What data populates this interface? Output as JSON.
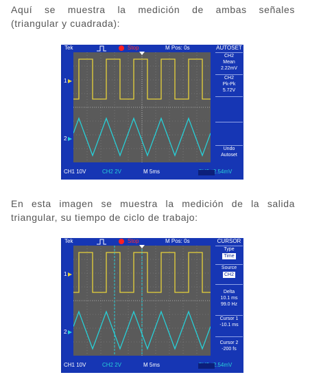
{
  "intro": {
    "line1": "Aquí se muestra la medición de ambas señales",
    "line2": "(triangular y cuadrada):"
  },
  "middle": {
    "line1": "En esta imagen se muestra la medición de la salida",
    "line2": "triangular, su tiempo de ciclo de trabajo:"
  },
  "colors": {
    "ch1": "#e8d23a",
    "ch2": "#27d0d8",
    "grid": "#5a5a5a",
    "frame": "#1636b4",
    "stop": "#ff2020"
  },
  "scope1": {
    "header": {
      "brand": "Tek",
      "trigger_icon": "trigger-edge-icon",
      "state": "Stop",
      "mpos": "M Pos: 0s"
    },
    "menu": {
      "title": "AUTOSET",
      "items": [
        {
          "lines": [
            "CH2",
            "Mean",
            "2.22mV"
          ]
        },
        {
          "lines": [
            "CH2",
            "Pk-Pk",
            "5.72V"
          ]
        },
        {
          "lines": [
            ""
          ]
        },
        {
          "lines": [
            ""
          ]
        },
        {
          "lines": [
            "Undo",
            "Autoset"
          ]
        }
      ]
    },
    "footer": {
      "ch1": "CH1  10V",
      "ch2": "CH2  2V",
      "time": "M 5ms",
      "trig": "CH2 ∕ 2.54mV"
    },
    "markers": {
      "ch1": "1",
      "ch2": "2"
    }
  },
  "scope2": {
    "header": {
      "brand": "Tek",
      "trigger_icon": "trigger-edge-icon",
      "state": "Stop",
      "mpos": "M Pos: 0s"
    },
    "menu": {
      "title": "CURSOR",
      "type_label": "Type",
      "type_value": "Time",
      "source_label": "Source",
      "source_value": "CH2",
      "delta_label": "Delta",
      "delta_time": "10.1 ms",
      "delta_freq": "99.0 Hz",
      "cursor1_label": "Cursor 1",
      "cursor1_value": "-10.1 ms",
      "cursor2_label": "Cursor 2",
      "cursor2_value": "-200 fs"
    },
    "footer": {
      "ch1": "CH1  10V",
      "ch2": "CH2  2V",
      "time": "M 5ms",
      "trig": "CH2 ∕ 2.54mV"
    },
    "markers": {
      "ch1": "1",
      "ch2": "2"
    }
  }
}
